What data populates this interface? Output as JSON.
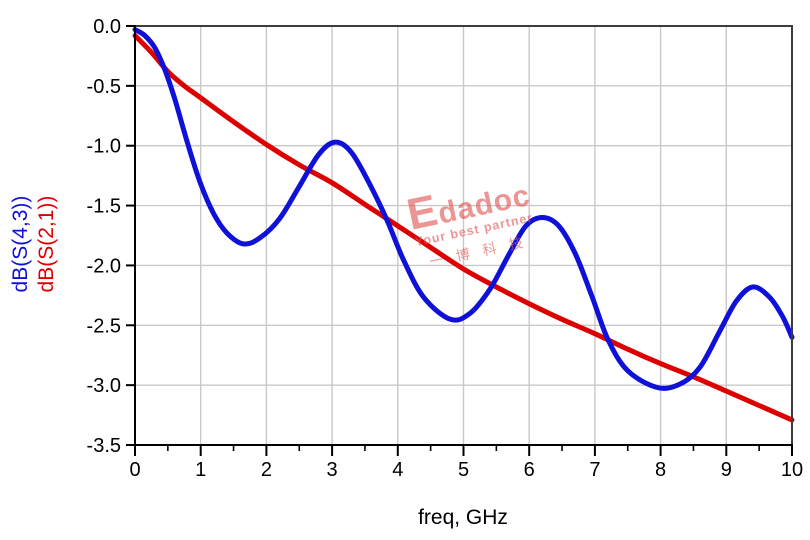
{
  "watermark": {
    "brand": "Edadoc",
    "tagline": "Your best partner",
    "company": "一博科技",
    "color": "#e05555"
  },
  "colors": {
    "series_blue": "#0f10d8",
    "series_red": "#dd0000",
    "grid": "#c9c9c9",
    "frame": "#3c3c3c",
    "axis": "#000000",
    "background": "#ffffff"
  },
  "chart_data": {
    "type": "line",
    "title": "",
    "xlabel": "freq, GHz",
    "ylabel_lines": [
      {
        "text": "dB(S(4,3))",
        "color": "#0f10d8"
      },
      {
        "text": "dB(S(2,1))",
        "color": "#dd0000"
      }
    ],
    "xlim": [
      0,
      10
    ],
    "ylim": [
      -3.5,
      0
    ],
    "xticks": [
      0,
      1,
      2,
      3,
      4,
      5,
      6,
      7,
      8,
      9,
      10
    ],
    "xminor_step": 0.5,
    "yticks": [
      "0.0",
      "-0.5",
      "-1.0",
      "-1.5",
      "-2.0",
      "-2.5",
      "-3.0",
      "-3.5"
    ],
    "ytick_values": [
      0,
      -0.5,
      -1.0,
      -1.5,
      -2.0,
      -2.5,
      -3.0,
      -3.5
    ],
    "grid": true,
    "legend_position": "left-axis",
    "series": [
      {
        "name": "dB(S(4,3))",
        "color": "#0f10d8",
        "points": [
          [
            0,
            -0.03
          ],
          [
            0.15,
            -0.08
          ],
          [
            0.3,
            -0.18
          ],
          [
            0.45,
            -0.36
          ],
          [
            0.6,
            -0.6
          ],
          [
            0.8,
            -0.98
          ],
          [
            1.0,
            -1.32
          ],
          [
            1.2,
            -1.57
          ],
          [
            1.4,
            -1.73
          ],
          [
            1.65,
            -1.82
          ],
          [
            1.9,
            -1.77
          ],
          [
            2.2,
            -1.61
          ],
          [
            2.5,
            -1.34
          ],
          [
            2.8,
            -1.07
          ],
          [
            3.05,
            -0.97
          ],
          [
            3.3,
            -1.06
          ],
          [
            3.6,
            -1.35
          ],
          [
            3.85,
            -1.64
          ],
          [
            4.1,
            -1.97
          ],
          [
            4.4,
            -2.27
          ],
          [
            4.8,
            -2.45
          ],
          [
            5.1,
            -2.4
          ],
          [
            5.4,
            -2.2
          ],
          [
            5.7,
            -1.9
          ],
          [
            5.95,
            -1.67
          ],
          [
            6.2,
            -1.6
          ],
          [
            6.45,
            -1.67
          ],
          [
            6.7,
            -1.9
          ],
          [
            6.95,
            -2.25
          ],
          [
            7.2,
            -2.62
          ],
          [
            7.5,
            -2.88
          ],
          [
            7.95,
            -3.02
          ],
          [
            8.3,
            -2.99
          ],
          [
            8.6,
            -2.85
          ],
          [
            8.9,
            -2.55
          ],
          [
            9.15,
            -2.3
          ],
          [
            9.4,
            -2.18
          ],
          [
            9.65,
            -2.26
          ],
          [
            9.85,
            -2.42
          ],
          [
            10,
            -2.6
          ]
        ]
      },
      {
        "name": "dB(S(2,1))",
        "color": "#dd0000",
        "points": [
          [
            0,
            -0.08
          ],
          [
            0.25,
            -0.22
          ],
          [
            0.5,
            -0.38
          ],
          [
            0.75,
            -0.5
          ],
          [
            1,
            -0.6
          ],
          [
            1.5,
            -0.8
          ],
          [
            2,
            -0.99
          ],
          [
            2.5,
            -1.16
          ],
          [
            3,
            -1.31
          ],
          [
            3.5,
            -1.49
          ],
          [
            4,
            -1.67
          ],
          [
            4.5,
            -1.85
          ],
          [
            5,
            -2.03
          ],
          [
            5.5,
            -2.18
          ],
          [
            6,
            -2.32
          ],
          [
            6.5,
            -2.45
          ],
          [
            7,
            -2.57
          ],
          [
            7.5,
            -2.7
          ],
          [
            8,
            -2.82
          ],
          [
            8.5,
            -2.93
          ],
          [
            9,
            -3.05
          ],
          [
            9.5,
            -3.17
          ],
          [
            10,
            -3.29
          ]
        ]
      }
    ]
  }
}
